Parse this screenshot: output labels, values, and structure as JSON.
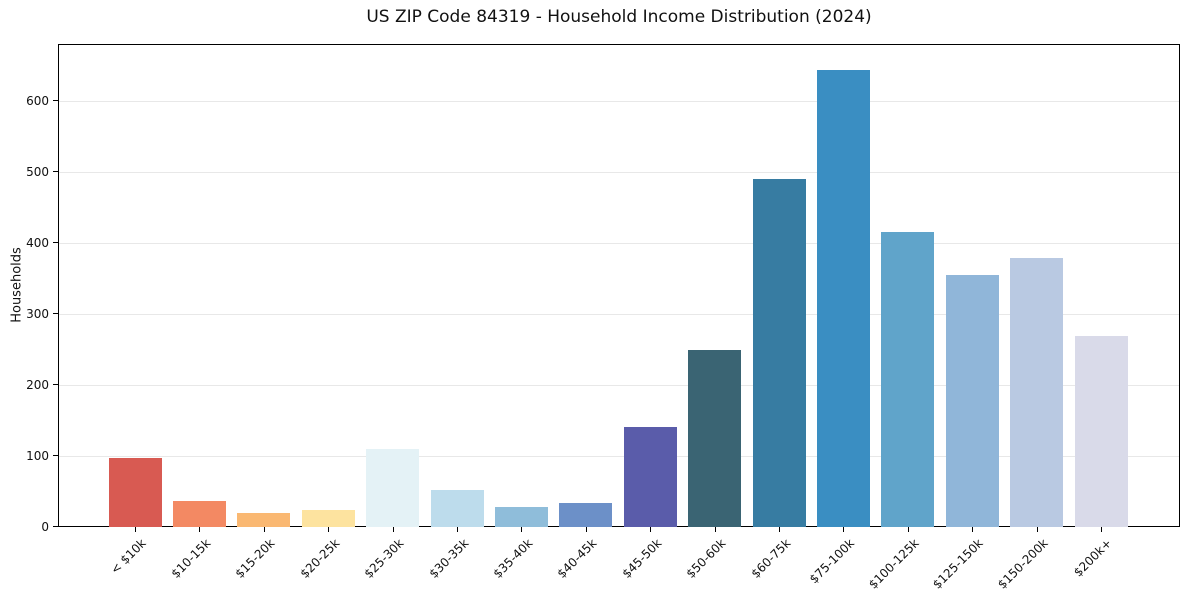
{
  "chart_data": {
    "type": "bar",
    "title": "US ZIP Code 84319 - Household Income Distribution (2024)",
    "xlabel": "",
    "ylabel": "Households",
    "categories": [
      "< $10k",
      "$10-15k",
      "$15-20k",
      "$20-25k",
      "$25-30k",
      "$30-35k",
      "$35-40k",
      "$40-45k",
      "$45-50k",
      "$50-60k",
      "$60-75k",
      "$75-100k",
      "$100-125k",
      "$125-150k",
      "$150-200k",
      "$200k+"
    ],
    "values": [
      99,
      38,
      21,
      25,
      111,
      54,
      30,
      35,
      142,
      251,
      491,
      645,
      417,
      356,
      380,
      270
    ],
    "bar_colors": [
      "#d85a52",
      "#f38963",
      "#fab872",
      "#fde39f",
      "#e4f2f6",
      "#bddcec",
      "#8fbdda",
      "#6c90c8",
      "#5a5caa",
      "#3a6473",
      "#377ca2",
      "#3a8ec2",
      "#60a4ca",
      "#90b6d9",
      "#b9c9e2",
      "#d9dae9"
    ],
    "yticks": [
      0,
      100,
      200,
      300,
      400,
      500,
      600
    ],
    "ylim": [
      0,
      680
    ],
    "x_tick_label_rotation": 45,
    "grid": "horizontal",
    "gridline_color": "#e8e8e8",
    "spine_color": "#000000",
    "background_color": "#ffffff",
    "legend": "none"
  }
}
